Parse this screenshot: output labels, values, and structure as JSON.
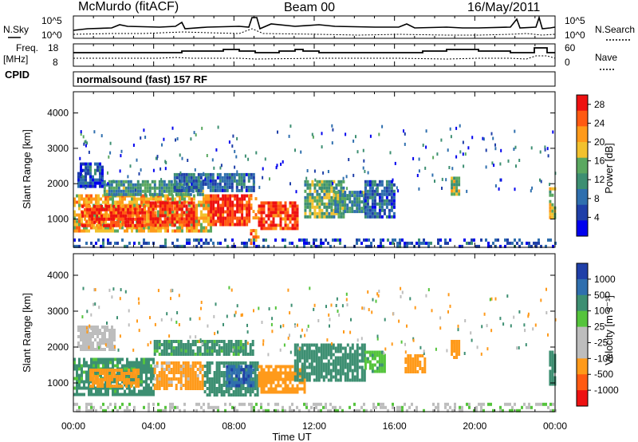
{
  "header": {
    "station": "McMurdo (fitACF)",
    "beam": "Beam 00",
    "date": "16/May/2011"
  },
  "noise_panel": {
    "left_label": "N.Sky",
    "right_label": "N.Search",
    "ticks_left": [
      "10^5",
      "10^0"
    ],
    "ticks_right": [
      "10^5",
      "10^0"
    ]
  },
  "freq_panel": {
    "left_label_1": "Freq.",
    "left_label_2": "[MHz]",
    "right_label": "Nave",
    "ticks_left": [
      "18",
      "8"
    ],
    "ticks_right": [
      "60",
      "0"
    ]
  },
  "cpid": {
    "label": "CPID",
    "value": "normalsound (fast) 157 RF"
  },
  "colors": {
    "power_scale": [
      "#0000ee",
      "#1f3fa8",
      "#2f6fae",
      "#3d8f72",
      "#5aa860",
      "#f2c12e",
      "#ff9a1a",
      "#ff5a12",
      "#ee1111"
    ],
    "velocity_scale": [
      "#ee1111",
      "#ff5a12",
      "#ff9a1a",
      "#bdbdbd",
      "#bdbdbd",
      "#55c43c",
      "#3d8f72",
      "#2f6fae",
      "#1f3fa8"
    ]
  },
  "chart_data": [
    {
      "type": "heatmap",
      "name": "power",
      "ylabel": "Slant Range [km]",
      "yticks": [
        "1000",
        "2000",
        "3000",
        "4000"
      ],
      "ylim": [
        200,
        4600
      ],
      "xlim": [
        0,
        24
      ],
      "xticks": [
        "00:00",
        "04:00",
        "08:00",
        "12:00",
        "16:00",
        "20:00",
        "00:00"
      ],
      "colorbar_label": "Power [dB]",
      "colorbar_ticks": [
        "4",
        "8",
        "12",
        "16",
        "20",
        "24",
        "28"
      ],
      "colorbar_range": [
        0,
        30
      ],
      "regions": [
        {
          "t0": 0.0,
          "t1": 6.8,
          "r0": 700,
          "r1": 1700,
          "value": 20
        },
        {
          "t0": 0.4,
          "t1": 3.5,
          "r0": 800,
          "r1": 1400,
          "value": 27
        },
        {
          "t0": 3.8,
          "t1": 6.0,
          "r0": 800,
          "r1": 1500,
          "value": 28
        },
        {
          "t0": 6.8,
          "t1": 8.8,
          "r0": 800,
          "r1": 1700,
          "value": 28
        },
        {
          "t0": 8.8,
          "t1": 9.2,
          "r0": 300,
          "r1": 1800,
          "value": 22
        },
        {
          "t0": 9.2,
          "t1": 11.2,
          "r0": 700,
          "r1": 1500,
          "value": 27
        },
        {
          "t0": 11.5,
          "t1": 13.5,
          "r0": 1100,
          "r1": 2100,
          "value": 14
        },
        {
          "t0": 13.0,
          "t1": 14.5,
          "r0": 1200,
          "r1": 1800,
          "value": 12
        },
        {
          "t0": 0.2,
          "t1": 1.5,
          "r0": 1900,
          "r1": 2600,
          "value": 6
        },
        {
          "t0": 1.5,
          "t1": 6.5,
          "r0": 1700,
          "r1": 2100,
          "value": 12
        },
        {
          "t0": 5.0,
          "t1": 9.0,
          "r0": 1800,
          "r1": 2300,
          "value": 8
        },
        {
          "t0": 14.5,
          "t1": 16.0,
          "r0": 1100,
          "r1": 2100,
          "value": 7
        },
        {
          "t0": 18.8,
          "t1": 19.2,
          "r0": 1700,
          "r1": 2200,
          "value": 16
        },
        {
          "t0": 23.7,
          "t1": 24.0,
          "r0": 1000,
          "r1": 1900,
          "value": 18
        },
        {
          "t0": 0.0,
          "t1": 24.0,
          "r0": 200,
          "r1": 450,
          "value": 6
        }
      ]
    },
    {
      "type": "heatmap",
      "name": "velocity",
      "ylabel": "Slant Range [km]",
      "yticks": [
        "1000",
        "2000",
        "3000",
        "4000"
      ],
      "ylim": [
        200,
        4600
      ],
      "xlim": [
        0,
        24
      ],
      "xticks": [
        "00:00",
        "04:00",
        "08:00",
        "12:00",
        "16:00",
        "20:00",
        "00:00"
      ],
      "xlabel": "Time UT",
      "colorbar_label": "Velocity [m s⁻¹]",
      "colorbar_ticks": [
        "1000",
        "500",
        "100",
        "25",
        "-25",
        "-100",
        "-500",
        "-1000"
      ],
      "regions": [
        {
          "t0": 0.0,
          "t1": 4.0,
          "r0": 700,
          "r1": 1700,
          "value": 150
        },
        {
          "t0": 0.8,
          "t1": 3.2,
          "r0": 900,
          "r1": 1400,
          "value": -200
        },
        {
          "t0": 4.0,
          "t1": 6.5,
          "r0": 800,
          "r1": 1600,
          "value": -150
        },
        {
          "t0": 6.5,
          "t1": 9.2,
          "r0": 700,
          "r1": 1600,
          "value": 300
        },
        {
          "t0": 7.6,
          "t1": 9.0,
          "r0": 900,
          "r1": 1500,
          "value": 900
        },
        {
          "t0": 9.2,
          "t1": 11.5,
          "r0": 700,
          "r1": 1500,
          "value": -200
        },
        {
          "t0": 11.0,
          "t1": 14.5,
          "r0": 1100,
          "r1": 2100,
          "value": 200
        },
        {
          "t0": 14.5,
          "t1": 15.5,
          "r0": 1300,
          "r1": 1900,
          "value": 80
        },
        {
          "t0": 0.2,
          "t1": 2.0,
          "r0": 1900,
          "r1": 2600,
          "value": -60
        },
        {
          "t0": 4.0,
          "t1": 9.0,
          "r0": 1800,
          "r1": 2200,
          "value": 150
        },
        {
          "t0": 16.5,
          "t1": 17.5,
          "r0": 1300,
          "r1": 1800,
          "value": -300
        },
        {
          "t0": 18.8,
          "t1": 19.2,
          "r0": 1700,
          "r1": 2200,
          "value": -300
        },
        {
          "t0": 23.7,
          "t1": 24.0,
          "r0": 1000,
          "r1": 1900,
          "value": 200
        },
        {
          "t0": 0.0,
          "t1": 24.0,
          "r0": 200,
          "r1": 450,
          "value": 20
        }
      ]
    }
  ]
}
